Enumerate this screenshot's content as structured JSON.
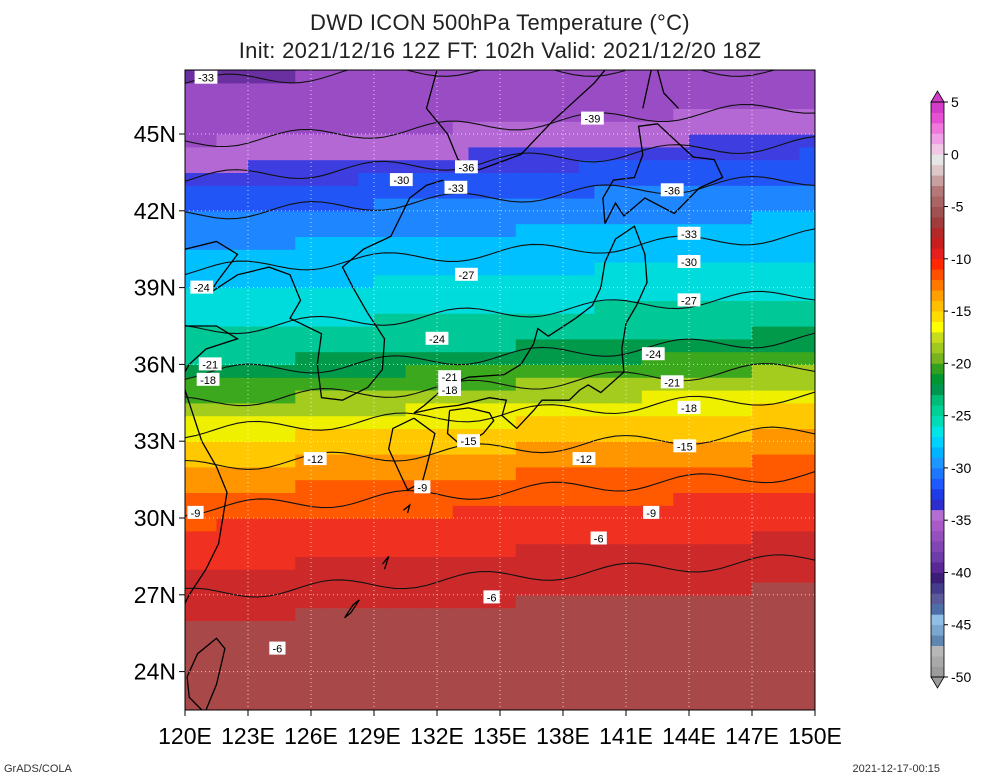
{
  "title": {
    "line1": "DWD ICON 500hPa Temperature (°C)",
    "line2": "Init: 2021/12/16 12Z  FT: 102h  Valid: 2021/12/20 18Z"
  },
  "axes": {
    "lon_labels": [
      "120E",
      "123E",
      "126E",
      "129E",
      "132E",
      "135E",
      "138E",
      "141E",
      "144E",
      "147E",
      "150E"
    ],
    "lat_labels": [
      "24N",
      "27N",
      "30N",
      "33N",
      "36N",
      "39N",
      "42N",
      "45N"
    ],
    "lon_range": [
      120,
      150
    ],
    "lat_range": [
      22.5,
      47.5
    ]
  },
  "colorbar": {
    "labels": [
      "5",
      "0",
      "-5",
      "-10",
      "-15",
      "-20",
      "-25",
      "-30",
      "-35",
      "-40",
      "-45",
      "-50"
    ],
    "colors": [
      "#9b9b9b",
      "#a9a9a9",
      "#b7b7b7",
      "#5f86b0",
      "#7aa6d0",
      "#8fbfe6",
      "#4d6ea6",
      "#5a5a9a",
      "#463c8c",
      "#3c1e78",
      "#5a2896",
      "#6e3caa",
      "#8246b4",
      "#9650be",
      "#aa5ac8",
      "#b46ed2",
      "#2d2dcd",
      "#1e3ce6",
      "#1e5aff",
      "#1e78ff",
      "#1e96ff",
      "#00b4ff",
      "#00d2ff",
      "#00e6e6",
      "#00dcb4",
      "#00d296",
      "#00be78",
      "#009650",
      "#009632",
      "#32a01e",
      "#78b41e",
      "#a0c81e",
      "#c8dc1e",
      "#ffff00",
      "#ffdc00",
      "#ffbe00",
      "#ffa000",
      "#ff7800",
      "#ff5000",
      "#ff2800",
      "#e61e1e",
      "#c81e1e",
      "#b42828",
      "#a03c3c",
      "#a05050",
      "#aa6464",
      "#b47878",
      "#c8a0a0",
      "#dcc8c8",
      "#e6e6e6",
      "#f0c8e6",
      "#f0a0e6",
      "#f078dc",
      "#e650d2",
      "#d23cc8"
    ]
  },
  "contour_labels": [
    {
      "text": "-33",
      "lon": 121,
      "lat": 47.2
    },
    {
      "text": "-39",
      "lon": 139.4,
      "lat": 45.6
    },
    {
      "text": "-36",
      "lon": 133.4,
      "lat": 43.7
    },
    {
      "text": "-30",
      "lon": 130.3,
      "lat": 43.2
    },
    {
      "text": "-33",
      "lon": 132.9,
      "lat": 42.9
    },
    {
      "text": "-36",
      "lon": 143.2,
      "lat": 42.8
    },
    {
      "text": "-33",
      "lon": 144.0,
      "lat": 41.1
    },
    {
      "text": "-30",
      "lon": 144.0,
      "lat": 40.0
    },
    {
      "text": "-27",
      "lon": 133.4,
      "lat": 39.5
    },
    {
      "text": "-24",
      "lon": 120.8,
      "lat": 39.0
    },
    {
      "text": "-27",
      "lon": 144.0,
      "lat": 38.5
    },
    {
      "text": "-24",
      "lon": 132.0,
      "lat": 37.0
    },
    {
      "text": "-24",
      "lon": 142.3,
      "lat": 36.4
    },
    {
      "text": "-21",
      "lon": 121.2,
      "lat": 36.0
    },
    {
      "text": "-18",
      "lon": 121.1,
      "lat": 35.4
    },
    {
      "text": "-21",
      "lon": 132.6,
      "lat": 35.5
    },
    {
      "text": "-18",
      "lon": 132.6,
      "lat": 35.0
    },
    {
      "text": "-21",
      "lon": 143.2,
      "lat": 35.3
    },
    {
      "text": "-18",
      "lon": 144.0,
      "lat": 34.3
    },
    {
      "text": "-15",
      "lon": 133.5,
      "lat": 33.0
    },
    {
      "text": "-15",
      "lon": 143.8,
      "lat": 32.8
    },
    {
      "text": "-12",
      "lon": 126.2,
      "lat": 32.3
    },
    {
      "text": "-12",
      "lon": 139.0,
      "lat": 32.3
    },
    {
      "text": "-9",
      "lon": 131.3,
      "lat": 31.2
    },
    {
      "text": "-9",
      "lon": 120.5,
      "lat": 30.2
    },
    {
      "text": "-9",
      "lon": 142.2,
      "lat": 30.2
    },
    {
      "text": "-6",
      "lon": 139.7,
      "lat": 29.2
    },
    {
      "text": "-6",
      "lon": 134.6,
      "lat": 26.9
    },
    {
      "text": "-6",
      "lon": 124.4,
      "lat": 24.9
    }
  ],
  "footer": {
    "credit": "GrADS/COLA",
    "timestamp": "2021-12-17-00:15"
  }
}
